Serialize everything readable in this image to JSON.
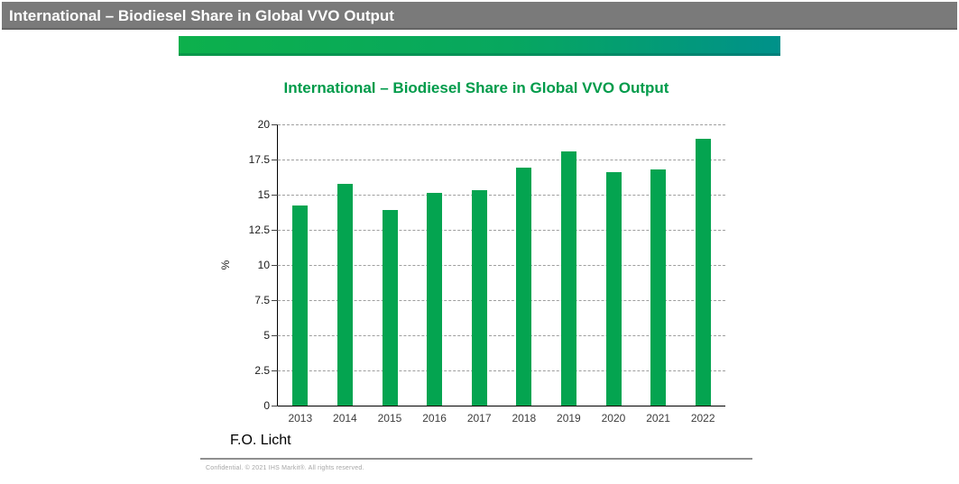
{
  "header": {
    "title": "International – Biodiesel Share in Global VVO Output",
    "bar_color": "#7a7a7a",
    "text_color": "#ffffff"
  },
  "accent_bar": {
    "gradient_start": "#0db04c",
    "gradient_end": "#00918a"
  },
  "chart": {
    "source": "F.O. Licht"
  },
  "footer": {
    "copyright": "Confidential. © 2021 IHS Markit®. All rights reserved."
  },
  "chart_data": {
    "type": "bar",
    "title": "International – Biodiesel Share in Global VVO Output",
    "title_color": "#009b4a",
    "categories": [
      "2013",
      "2014",
      "2015",
      "2016",
      "2017",
      "2018",
      "2019",
      "2020",
      "2021",
      "2022"
    ],
    "values": [
      14.2,
      15.8,
      13.9,
      15.1,
      15.3,
      16.9,
      18.1,
      16.6,
      16.8,
      19.0
    ],
    "xlabel": "",
    "ylabel": "%",
    "ylim": [
      0,
      20
    ],
    "yticks": [
      0,
      2.5,
      5,
      7.5,
      10,
      12.5,
      15,
      17.5,
      20
    ],
    "ytick_labels": [
      "0",
      "2.5",
      "5",
      "7.5",
      "10",
      "12.5",
      "15",
      "17.5",
      "20"
    ],
    "bar_color": "#04a450",
    "grid": "horizontal-dashed",
    "legend": "none"
  }
}
